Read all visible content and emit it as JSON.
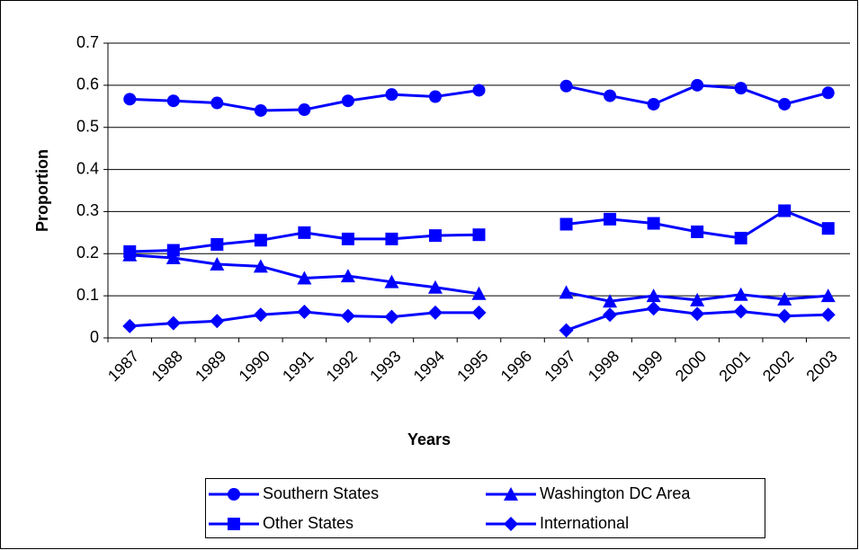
{
  "chart_data": {
    "type": "line",
    "x_label": "Years",
    "y_label": "Proportion",
    "categories": [
      "1987",
      "1988",
      "1989",
      "1990",
      "1991",
      "1992",
      "1993",
      "1994",
      "1995",
      "1996",
      "1997",
      "1998",
      "1999",
      "2000",
      "2001",
      "2002",
      "2003"
    ],
    "series": [
      {
        "name": "Southern States",
        "color": "#0000ff",
        "marker": "circle",
        "values": [
          0.567,
          0.563,
          0.558,
          0.54,
          0.542,
          0.563,
          0.578,
          0.573,
          0.588,
          null,
          0.598,
          0.575,
          0.555,
          0.6,
          0.593,
          0.555,
          0.582
        ]
      },
      {
        "name": "Other States",
        "color": "#0000ff",
        "marker": "square",
        "values": [
          0.205,
          0.208,
          0.222,
          0.232,
          0.25,
          0.235,
          0.235,
          0.243,
          0.245,
          null,
          0.27,
          0.282,
          0.272,
          0.252,
          0.237,
          0.302,
          0.26
        ]
      },
      {
        "name": "Washington DC Area",
        "color": "#0000ff",
        "marker": "triangle",
        "values": [
          0.197,
          0.19,
          0.175,
          0.17,
          0.142,
          0.147,
          0.133,
          0.12,
          0.105,
          null,
          0.108,
          0.087,
          0.1,
          0.09,
          0.103,
          0.092,
          0.1
        ]
      },
      {
        "name": "International",
        "color": "#0000ff",
        "marker": "diamond",
        "values": [
          0.028,
          0.035,
          0.04,
          0.055,
          0.062,
          0.052,
          0.05,
          0.06,
          0.06,
          null,
          0.018,
          0.055,
          0.07,
          0.057,
          0.063,
          0.052,
          0.055
        ]
      }
    ],
    "ylim": [
      0,
      0.7
    ],
    "yticks": [
      0,
      0.1,
      0.2,
      0.3,
      0.4,
      0.5,
      0.6,
      0.7
    ],
    "grid": true,
    "legend": "bottom"
  }
}
